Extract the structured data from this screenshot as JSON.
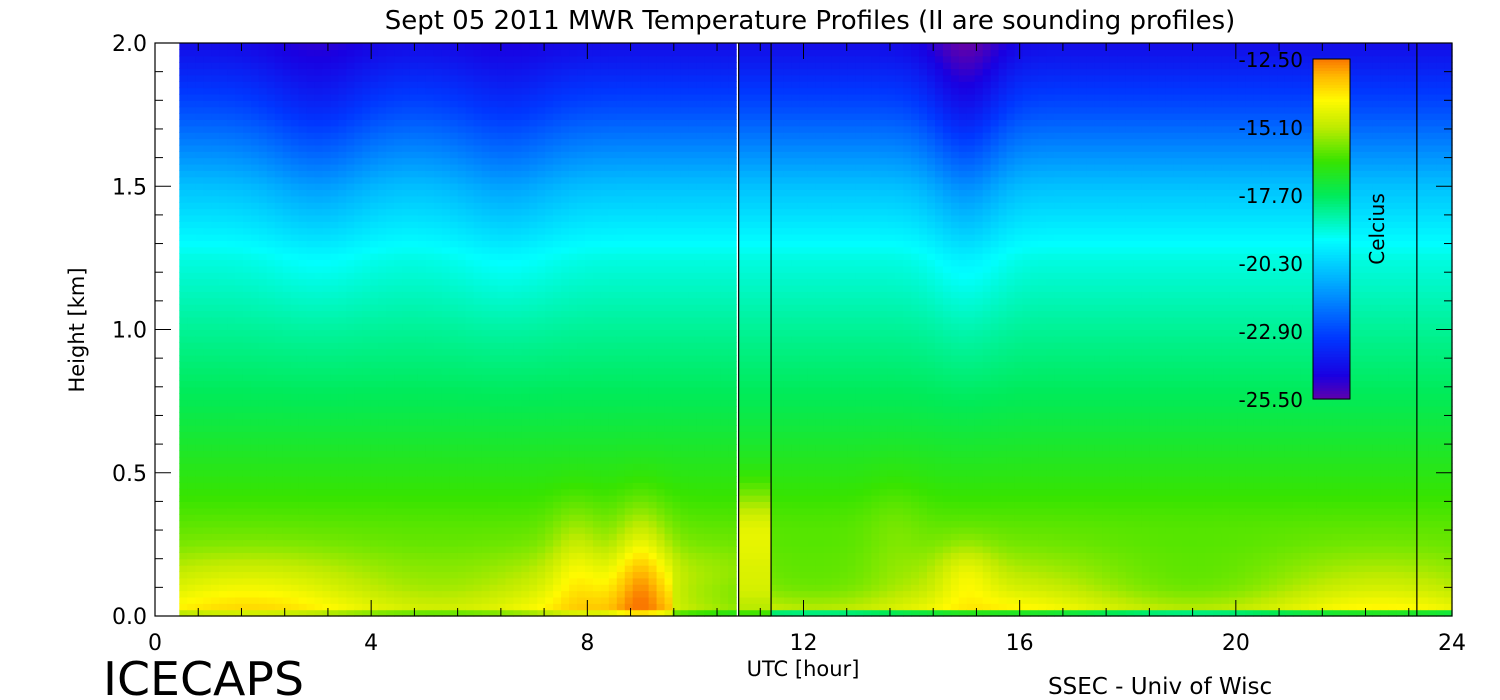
{
  "chart_data": {
    "type": "heatmap",
    "title": "Sept 05 2011 MWR Temperature Profiles (II are sounding profiles)",
    "xlabel": "UTC [hour]",
    "ylabel": "Height [km]",
    "xlim": [
      0,
      24
    ],
    "ylim": [
      0,
      2
    ],
    "x_ticks": [
      "0",
      "4",
      "8",
      "12",
      "16",
      "20",
      "24"
    ],
    "y_ticks": [
      "0.0",
      "0.5",
      "1.0",
      "1.5",
      "2.0"
    ],
    "x_tick_values": [
      0,
      4,
      8,
      12,
      16,
      20,
      24
    ],
    "y_tick_values": [
      0,
      0.5,
      1.0,
      1.5,
      2.0
    ],
    "data_start_hour": 0.45,
    "sounding_lines_hour": [
      10.8,
      11.4,
      23.35
    ],
    "grid": false,
    "colorbar": {
      "label": "Celcius",
      "ticks": [
        "-12.50",
        "-15.10",
        "-17.70",
        "-20.30",
        "-22.90",
        "-25.50"
      ],
      "min": -25.5,
      "max": -12.5,
      "placement": "top-right"
    },
    "approx_profile_celsius": {
      "height_km": [
        0.0,
        0.03,
        0.1,
        0.25,
        0.5,
        0.75,
        1.0,
        1.25,
        1.5,
        1.75,
        2.0
      ],
      "temperature": [
        -16.0,
        -14.2,
        -14.8,
        -15.8,
        -16.7,
        -17.6,
        -18.3,
        -19.1,
        -20.6,
        -22.6,
        -24.3
      ]
    },
    "features": [
      {
        "hour": 9.0,
        "height_km": 0.15,
        "temperature": -13.5,
        "note": "warm"
      },
      {
        "hour": 11.1,
        "height_km": 0.3,
        "temperature": -14.5,
        "note": "sounding"
      },
      {
        "hour": 15.0,
        "height_km": 0.15,
        "temperature": -14.5,
        "note": "warm"
      },
      {
        "hour": 15.0,
        "height_km": 1.9,
        "temperature": -25.5,
        "note": "cold dip"
      }
    ]
  },
  "footer": {
    "left": "ICECAPS",
    "right": "SSEC - Univ of Wisc"
  }
}
